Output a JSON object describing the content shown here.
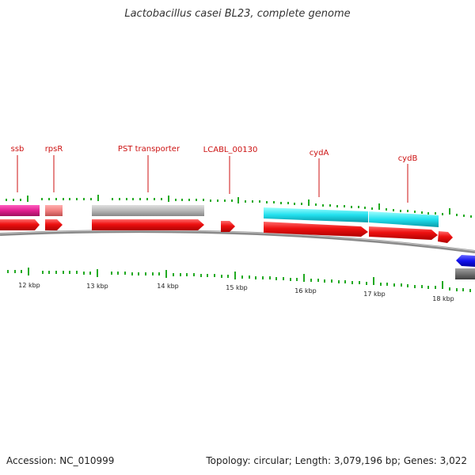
{
  "title": "Lactobacillus casei BL23, complete genome",
  "footer": {
    "accession": "Accession: NC_010999",
    "summary": "Topology: circular; Length: 3,079,196 bp; Genes: 3,022"
  },
  "colors": {
    "backbone": "#8a8a8a",
    "cds": "#ee1111",
    "tick": "#22aa22",
    "label": "#cc1111",
    "pink": "#e02090",
    "salmon": "#f08080",
    "gray": "#b8b8b8",
    "cyan": "#22e0ee",
    "blue": "#1111ee",
    "darkgray": "#707070"
  },
  "gene_labels": [
    {
      "id": "ssb",
      "text": "ssb"
    },
    {
      "id": "rpsR",
      "text": "rpsR"
    },
    {
      "id": "pst",
      "text": "PST transporter"
    },
    {
      "id": "lcabl",
      "text": "LCABL_00130"
    },
    {
      "id": "cydA",
      "text": "cydA"
    },
    {
      "id": "cydB",
      "text": "cydB"
    }
  ],
  "kbp_labels": [
    {
      "id": "k12",
      "text": "12 kbp"
    },
    {
      "id": "k13",
      "text": "13 kbp"
    },
    {
      "id": "k14",
      "text": "14 kbp"
    },
    {
      "id": "k15",
      "text": "15 kbp"
    },
    {
      "id": "k16",
      "text": "16 kbp"
    },
    {
      "id": "k17",
      "text": "17 kbp"
    },
    {
      "id": "k18",
      "text": "18 kbp"
    }
  ]
}
